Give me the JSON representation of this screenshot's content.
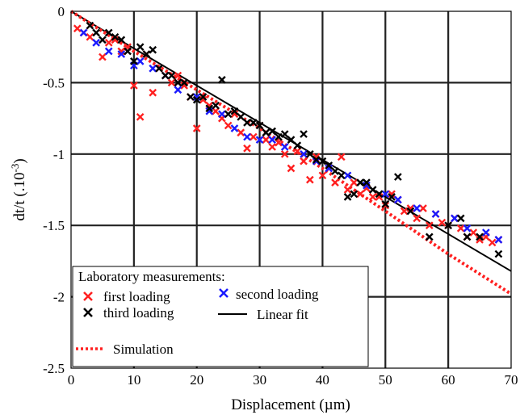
{
  "chart_data": {
    "type": "scatter",
    "xlabel": "Displacement (µm)",
    "ylabel": "dt/t (.10",
    "ylabel_exp": "-3",
    "ylabel_close": ")",
    "xlim": [
      0,
      70
    ],
    "ylim": [
      -2.5,
      0
    ],
    "xticks": [
      0,
      10,
      20,
      30,
      40,
      50,
      60,
      70
    ],
    "yticks": [
      0,
      -0.5,
      -1,
      -1.5,
      -2,
      -2.5
    ],
    "xtick_labels": [
      "0",
      "10",
      "20",
      "30",
      "40",
      "50",
      "60",
      "70"
    ],
    "ytick_labels": [
      "0",
      "-0.5",
      "-1",
      "-1.5",
      "-2",
      "-2.5"
    ],
    "grid": true,
    "legend": {
      "position": "bottom-left",
      "title": "Laboratory measurements:",
      "entries": [
        "first loading",
        "second loading",
        "third loading",
        "Linear fit",
        "Simulation"
      ]
    },
    "series": [
      {
        "name": "first loading",
        "marker": "x",
        "color": "#ff2020",
        "x": [
          1,
          2,
          3,
          5,
          6,
          7,
          8,
          9,
          10,
          11,
          12,
          13,
          14,
          15,
          16,
          17,
          18,
          19,
          20,
          21,
          22,
          23,
          24,
          25,
          26,
          27,
          28,
          29,
          30,
          31,
          32,
          33,
          34,
          35,
          36,
          37,
          38,
          39,
          40,
          41,
          42,
          43,
          44,
          45,
          46,
          47,
          48,
          49,
          50,
          51,
          52,
          53,
          54,
          55,
          56,
          57,
          58,
          59,
          60,
          61,
          62,
          63,
          64,
          65,
          66,
          67,
          68
        ],
        "y": [
          -0.12,
          -0.15,
          -0.18,
          -0.32,
          -0.22,
          -0.2,
          -0.28,
          -0.25,
          -0.52,
          -0.74,
          -0.3,
          -0.57,
          -0.4,
          -0.45,
          -0.5,
          -0.45,
          -0.52,
          -0.6,
          -0.82,
          -0.62,
          -0.66,
          -0.7,
          -0.75,
          -0.8,
          -0.72,
          -0.85,
          -0.96,
          -0.88,
          -0.8,
          -0.9,
          -0.95,
          -0.92,
          -1,
          -1.1,
          -0.98,
          -1.05,
          -1.18,
          -1.02,
          -1.15,
          -1.1,
          -1.2,
          -1.02,
          -1.25,
          -1.2,
          -1.28,
          -1.24,
          -1.3,
          -1.3,
          -1.36,
          -1.28,
          -1.32,
          -1.4,
          -1.38,
          -1.45,
          -1.38,
          -1.5,
          -1.42,
          -1.48,
          -1.5,
          -1.45,
          -1.52,
          -1.58,
          -1.55,
          -1.6,
          -1.58,
          -1.62,
          -1.6
        ]
      },
      {
        "name": "second loading",
        "marker": "x",
        "color": "#1a1aff",
        "x": [
          2,
          4,
          6,
          8,
          10,
          11,
          13,
          15,
          17,
          20,
          22,
          24,
          26,
          28,
          30,
          32,
          34,
          37,
          39,
          41,
          44,
          47,
          50,
          52,
          55,
          58,
          61,
          63,
          66,
          68
        ],
        "y": [
          -0.15,
          -0.22,
          -0.28,
          -0.3,
          -0.38,
          -0.35,
          -0.4,
          -0.45,
          -0.55,
          -0.6,
          -0.7,
          -0.72,
          -0.82,
          -0.88,
          -0.9,
          -0.9,
          -0.95,
          -1,
          -1.05,
          -1.1,
          -1.15,
          -1.22,
          -1.28,
          -1.32,
          -1.38,
          -1.42,
          -1.45,
          -1.52,
          -1.55,
          -1.6
        ]
      },
      {
        "name": "third loading",
        "marker": "x",
        "color": "#000000",
        "x": [
          3,
          4,
          5,
          6,
          7,
          8,
          9,
          10,
          11,
          12,
          13,
          14,
          15,
          16,
          17,
          18,
          19,
          20,
          21,
          22,
          23,
          24,
          25,
          26,
          27,
          28,
          29,
          30,
          31,
          32,
          33,
          34,
          35,
          36,
          37,
          38,
          39,
          40,
          41,
          42,
          43,
          44,
          45,
          46,
          47,
          48,
          49,
          50,
          51,
          52,
          54,
          57,
          60,
          62,
          63,
          65,
          68
        ],
        "y": [
          -0.1,
          -0.15,
          -0.2,
          -0.15,
          -0.18,
          -0.2,
          -0.28,
          -0.35,
          -0.25,
          -0.3,
          -0.27,
          -0.4,
          -0.45,
          -0.45,
          -0.5,
          -0.5,
          -0.6,
          -0.62,
          -0.6,
          -0.68,
          -0.66,
          -0.48,
          -0.72,
          -0.7,
          -0.74,
          -0.78,
          -0.78,
          -0.8,
          -0.85,
          -0.84,
          -0.88,
          -0.86,
          -0.9,
          -0.94,
          -0.86,
          -1,
          -1.04,
          -1.05,
          -1.08,
          -1.12,
          -1.15,
          -1.3,
          -1.28,
          -1.2,
          -1.2,
          -1.25,
          -1.28,
          -1.35,
          -1.3,
          -1.16,
          -1.4,
          -1.58,
          -1.5,
          -1.45,
          -1.58,
          -1.58,
          -1.7
        ]
      },
      {
        "name": "Linear fit",
        "type": "line",
        "color": "#000000",
        "x": [
          0,
          70
        ],
        "y": [
          0,
          -1.82
        ]
      },
      {
        "name": "Simulation",
        "type": "line",
        "style": "dotted",
        "color": "#ff2020",
        "x": [
          0,
          10,
          20,
          30,
          40,
          50,
          60,
          70
        ],
        "y": [
          0,
          -0.28,
          -0.55,
          -0.82,
          -1.1,
          -1.4,
          -1.7,
          -1.98
        ]
      }
    ]
  }
}
